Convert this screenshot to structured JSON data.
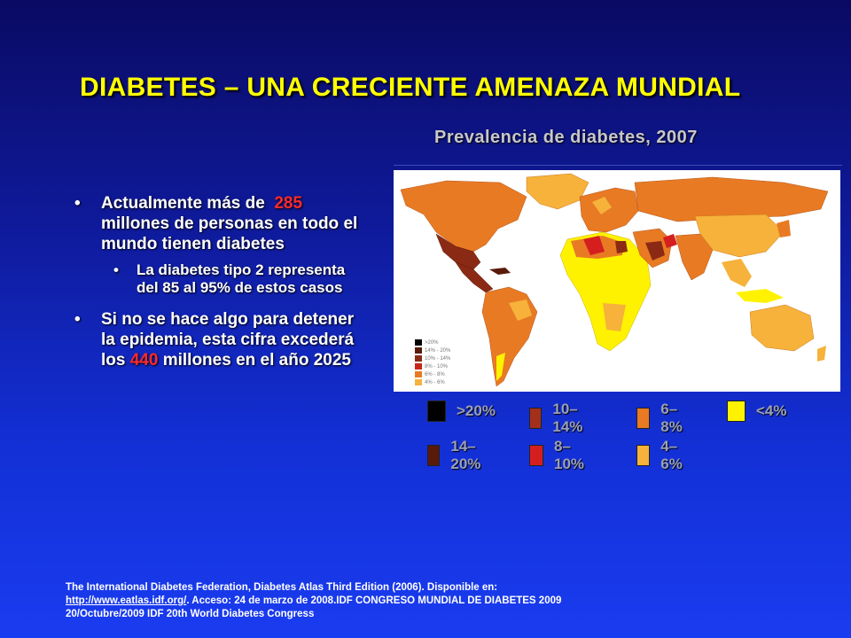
{
  "slide": {
    "title": "DIABETES – UNA CRECIENTE AMENAZA MUNDIAL",
    "map_title": "Prevalencia de diabetes, 2007"
  },
  "bullets": {
    "b1_pre": "Actualmente más de",
    "b1_num": "285",
    "b1_post": "millones de personas en todo el mundo tienen diabetes",
    "b1_sub": "La diabetes tipo 2 representa del 85 al 95% de estos casos",
    "b2_pre": "Si no se hace algo para detener la epidemia, esta cifra excederá los",
    "b2_num": "440",
    "b2_post": "millones en el año 2025",
    "bullet_char": "•"
  },
  "map_small_legend": [
    {
      "label": ">20%",
      "color": "#000000"
    },
    {
      "label": "14% - 20%",
      "color": "#5a1a0a"
    },
    {
      "label": "10% - 14%",
      "color": "#8b2a14"
    },
    {
      "label": "8% - 10%",
      "color": "#c8261c"
    },
    {
      "label": "6% - 8%",
      "color": "#e87a24"
    },
    {
      "label": "4% - 6%",
      "color": "#f6b23a"
    }
  ],
  "legend": [
    {
      "label": ">20%",
      "color": "#000000"
    },
    {
      "label": "10–14%",
      "color": "#a3301a"
    },
    {
      "label": "6–8%",
      "color": "#e87a24"
    },
    {
      "label": "<4%",
      "color": "#fff200"
    },
    {
      "label": "14–20%",
      "color": "#5a1a0a"
    },
    {
      "label": "8–10%",
      "color": "#d51f1f"
    },
    {
      "label": "4–6%",
      "color": "#f6b23a"
    }
  ],
  "footer": {
    "line1": "The International Diabetes Federation, Diabetes Atlas Third Edition (2006). Disponible en:",
    "link": "http://www.eatlas.idf.org/",
    "line2_rest": ". Acceso: 24 de marzo de 2008.IDF CONGRESO MUNDIAL DE DIABETES 2009",
    "line3": "20/Octubre/2009 IDF 20th World Diabetes Congress"
  }
}
